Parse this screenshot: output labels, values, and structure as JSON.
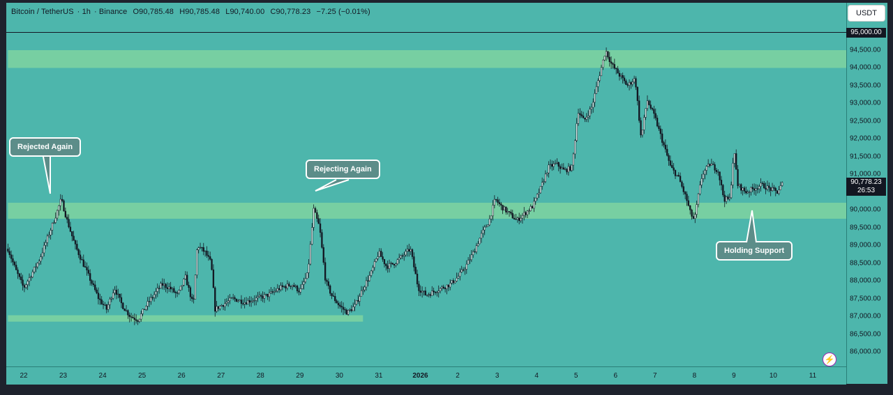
{
  "header": {
    "symbol": "Bitcoin / TetherUS",
    "interval": "1h",
    "exchange": "Binance",
    "open": "O90,785.48",
    "high": "H90,785.48",
    "low": "L90,740.00",
    "close": "C90,778.23",
    "change": "−7.25 (−0.01%)"
  },
  "currency_button": "USDT",
  "price_labels": {
    "top_line_price": "95,000.00",
    "last_price": "90,778.23",
    "countdown": "26:53"
  },
  "colors": {
    "background": "#4db6ac",
    "zone": "#7fd3a0",
    "candle": "#131722"
  },
  "chart_data": {
    "type": "candlestick",
    "title": "Bitcoin / TetherUS · 1h · Binance",
    "x_ticks": [
      "22",
      "23",
      "24",
      "25",
      "26",
      "27",
      "28",
      "29",
      "30",
      "31",
      "2026",
      "2",
      "3",
      "4",
      "5",
      "6",
      "7",
      "8",
      "9",
      "10",
      "11"
    ],
    "y_ticks": [
      "94,500.00",
      "94,000.00",
      "93,500.00",
      "93,000.00",
      "92,500.00",
      "92,000.00",
      "91,500.00",
      "91,000.00",
      "90,500.00",
      "90,000.00",
      "89,500.00",
      "89,000.00",
      "88,500.00",
      "88,000.00",
      "87,500.00",
      "87,000.00",
      "86,500.00",
      "86,000.00"
    ],
    "y_range": [
      85700,
      95400
    ],
    "horizontal_line": 95000,
    "zones": [
      {
        "from": 94000,
        "to": 94500,
        "start_day": 21.6,
        "end_day": 43.7
      },
      {
        "from": 89750,
        "to": 90200,
        "start_day": 21.6,
        "end_day": 43.7
      },
      {
        "from": 86850,
        "to": 87030,
        "start_day": 21.6,
        "end_day": 30.6
      }
    ],
    "close_path": [
      [
        21.6,
        88900
      ],
      [
        21.8,
        88300
      ],
      [
        22.0,
        87800
      ],
      [
        22.2,
        88200
      ],
      [
        22.4,
        88600
      ],
      [
        22.6,
        89200
      ],
      [
        22.8,
        89800
      ],
      [
        22.95,
        90300
      ],
      [
        23.1,
        89700
      ],
      [
        23.3,
        89000
      ],
      [
        23.5,
        88500
      ],
      [
        23.7,
        88000
      ],
      [
        23.9,
        87500
      ],
      [
        24.1,
        87200
      ],
      [
        24.3,
        87800
      ],
      [
        24.5,
        87300
      ],
      [
        24.7,
        87000
      ],
      [
        24.9,
        86900
      ],
      [
        25.1,
        87300
      ],
      [
        25.3,
        87600
      ],
      [
        25.5,
        87900
      ],
      [
        25.7,
        87800
      ],
      [
        25.9,
        87600
      ],
      [
        26.1,
        88100
      ],
      [
        26.3,
        87300
      ],
      [
        26.4,
        89000
      ],
      [
        26.6,
        88800
      ],
      [
        26.75,
        88500
      ],
      [
        26.85,
        87200
      ],
      [
        27.0,
        87300
      ],
      [
        27.3,
        87500
      ],
      [
        27.6,
        87400
      ],
      [
        27.9,
        87500
      ],
      [
        28.2,
        87600
      ],
      [
        28.5,
        87800
      ],
      [
        28.8,
        87900
      ],
      [
        29.0,
        87700
      ],
      [
        29.2,
        88200
      ],
      [
        29.35,
        90000
      ],
      [
        29.5,
        89500
      ],
      [
        29.65,
        88000
      ],
      [
        29.8,
        87600
      ],
      [
        30.0,
        87300
      ],
      [
        30.2,
        87100
      ],
      [
        30.4,
        87300
      ],
      [
        30.6,
        87800
      ],
      [
        30.8,
        88200
      ],
      [
        31.0,
        88800
      ],
      [
        31.2,
        88400
      ],
      [
        31.4,
        88500
      ],
      [
        31.6,
        88700
      ],
      [
        31.8,
        88900
      ],
      [
        32.0,
        87800
      ],
      [
        32.2,
        87600
      ],
      [
        32.4,
        87700
      ],
      [
        32.6,
        87800
      ],
      [
        32.8,
        87900
      ],
      [
        33.0,
        88100
      ],
      [
        33.2,
        88400
      ],
      [
        33.4,
        88800
      ],
      [
        33.6,
        89300
      ],
      [
        33.8,
        89700
      ],
      [
        33.95,
        90300
      ],
      [
        34.1,
        90100
      ],
      [
        34.3,
        89900
      ],
      [
        34.5,
        89700
      ],
      [
        34.7,
        89900
      ],
      [
        34.9,
        90100
      ],
      [
        35.1,
        90600
      ],
      [
        35.3,
        91200
      ],
      [
        35.5,
        91300
      ],
      [
        35.7,
        91100
      ],
      [
        35.9,
        91200
      ],
      [
        36.05,
        92800
      ],
      [
        36.2,
        92500
      ],
      [
        36.4,
        92900
      ],
      [
        36.55,
        93600
      ],
      [
        36.75,
        94500
      ],
      [
        36.9,
        94100
      ],
      [
        37.1,
        93800
      ],
      [
        37.3,
        93500
      ],
      [
        37.5,
        93700
      ],
      [
        37.65,
        92000
      ],
      [
        37.8,
        93100
      ],
      [
        38.0,
        92600
      ],
      [
        38.2,
        91900
      ],
      [
        38.4,
        91200
      ],
      [
        38.6,
        90900
      ],
      [
        38.8,
        90300
      ],
      [
        38.9,
        89900
      ],
      [
        39.0,
        89700
      ],
      [
        39.1,
        90400
      ],
      [
        39.2,
        91000
      ],
      [
        39.4,
        91300
      ],
      [
        39.6,
        91100
      ],
      [
        39.75,
        90300
      ],
      [
        39.9,
        90300
      ],
      [
        40.0,
        91700
      ],
      [
        40.1,
        90700
      ],
      [
        40.3,
        90500
      ],
      [
        40.5,
        90600
      ],
      [
        40.7,
        90700
      ],
      [
        40.9,
        90600
      ],
      [
        41.1,
        90500
      ],
      [
        41.25,
        90778
      ]
    ]
  },
  "annotations": {
    "rejected_again": "Rejected Again",
    "rejecting_again": "Rejecting Again",
    "holding_support": "Holding Support"
  }
}
